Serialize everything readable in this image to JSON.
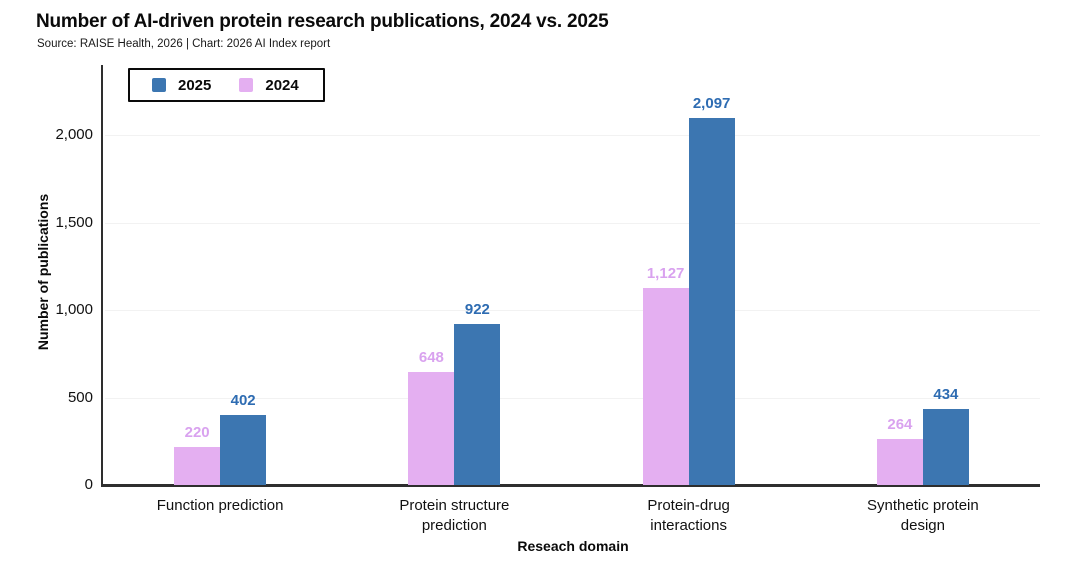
{
  "header": {
    "title": "Number of AI-driven protein research publications, 2024 vs. 2025",
    "subtitle": "Source: RAISE Health, 2026 | Chart: 2026 AI Index report"
  },
  "chart_data": {
    "type": "bar",
    "title": "Number of AI-driven protein research publications, 2024 vs. 2025",
    "subtitle": "Source: RAISE Health, 2026 | Chart: 2026 AI Index report",
    "categories": [
      "Function prediction",
      "Protein structure prediction",
      "Protein-drug interactions",
      "Synthetic protein design"
    ],
    "category_label_lines": [
      [
        "Function prediction"
      ],
      [
        "Protein structure",
        "prediction"
      ],
      [
        "Protein-drug",
        "interactions"
      ],
      [
        "Synthetic protein",
        "design"
      ]
    ],
    "series": [
      {
        "name": "2025",
        "color": "#3c76b1",
        "label_color": "#2e6cb2",
        "values": [
          402,
          922,
          2097,
          434
        ]
      },
      {
        "name": "2024",
        "color": "#e4aff1",
        "label_color": "#d9a2ef",
        "values": [
          220,
          648,
          1127,
          264
        ]
      }
    ],
    "bar_order": [
      "2024",
      "2025"
    ],
    "xlabel": "Reseach domain",
    "ylabel": "Number of publications",
    "ylim": [
      0,
      2400
    ],
    "yticks": [
      0,
      500,
      1000,
      1500,
      2000
    ],
    "grid": true,
    "value_labels": true,
    "legend_position": "top-left",
    "colors": {
      "grid": "#f2f2f2",
      "axis": "#2e2e2e",
      "text": "#111111",
      "background": "#ffffff"
    }
  },
  "legend": {
    "items": [
      {
        "label": "2025",
        "color": "#3c76b1"
      },
      {
        "label": "2024",
        "color": "#e4aff1"
      }
    ]
  }
}
